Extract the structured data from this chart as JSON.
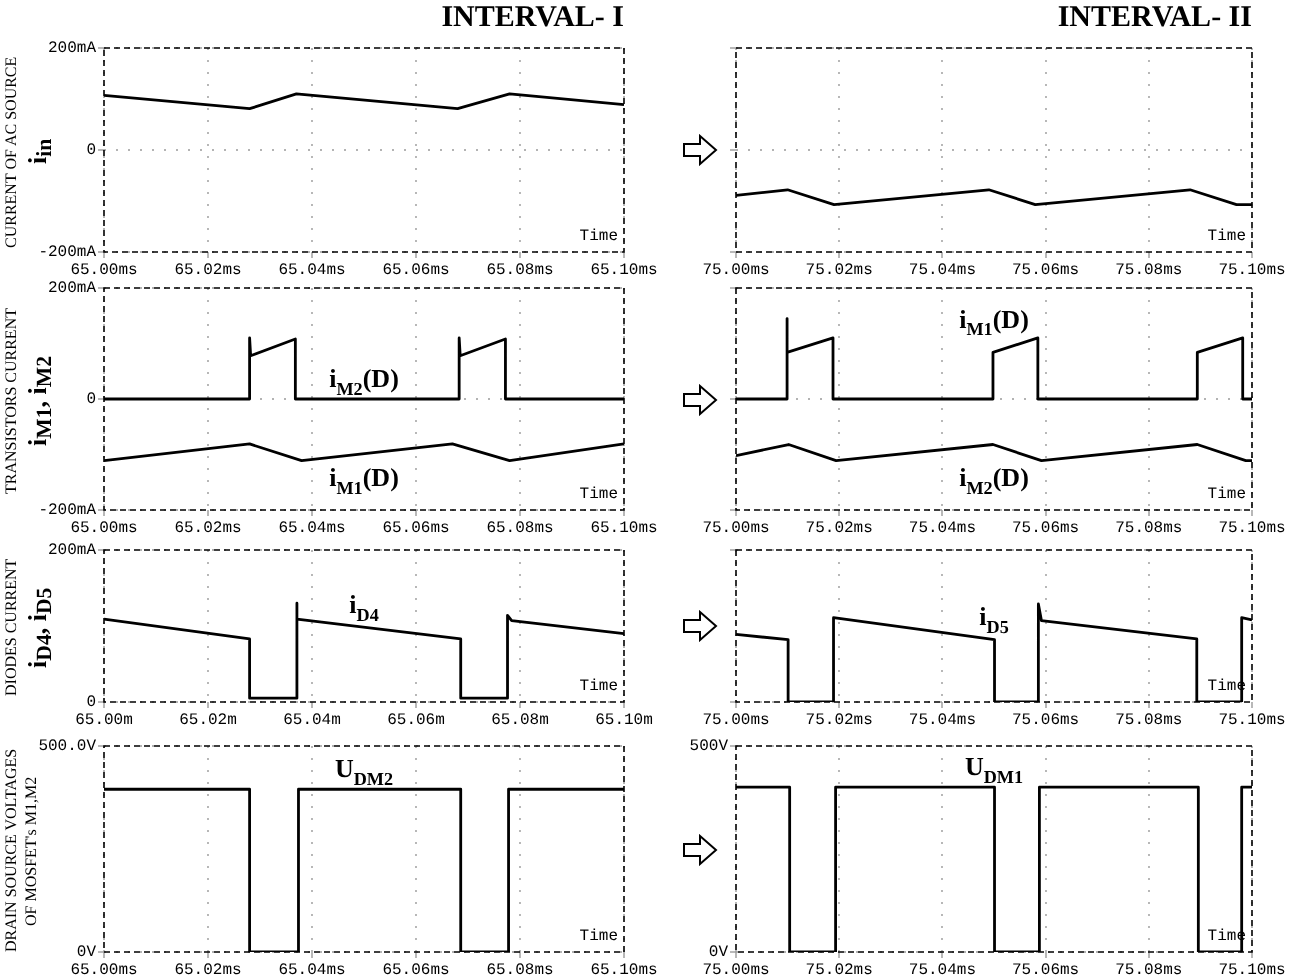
{
  "chart_data": [
    {
      "type": "line",
      "title": "INTERVAL- I",
      "ylabel": "CURRENT OF AC SOURCE\ni$_{in}$",
      "xlabel": "Time",
      "grid": true,
      "xlim": [
        65.0,
        65.1
      ],
      "ylim": [
        -200,
        200
      ],
      "xticks": [
        {
          "value": 65.0,
          "label": "65.00ms"
        },
        {
          "value": 65.02,
          "label": "65.02ms"
        },
        {
          "value": 65.04,
          "label": "65.04ms"
        },
        {
          "value": 65.06,
          "label": "65.06ms"
        },
        {
          "value": 65.08,
          "label": "65.08ms"
        },
        {
          "value": 65.1,
          "label": "65.10ms"
        }
      ],
      "yticks": [
        {
          "value": -200,
          "label": "-200mA"
        },
        {
          "value": 0,
          "label": "0"
        },
        {
          "value": 200,
          "label": "200mA"
        }
      ],
      "series": [
        {
          "color": "#000000",
          "x": [
            65.0,
            65.028,
            65.037,
            65.068,
            65.078,
            65.1
          ],
          "values": [
            107,
            81,
            110,
            81,
            110,
            89
          ]
        }
      ]
    },
    {
      "type": "line",
      "title": "INTERVAL- II",
      "xlabel": "Time",
      "grid": true,
      "tick_labels": "x",
      "xlim": [
        75.0,
        75.1
      ],
      "ylim": [
        -200,
        200
      ],
      "xticks": [
        {
          "value": 75.0,
          "label": "75.00ms"
        },
        {
          "value": 75.02,
          "label": "75.02ms"
        },
        {
          "value": 75.04,
          "label": "75.04ms"
        },
        {
          "value": 75.06,
          "label": "75.06ms"
        },
        {
          "value": 75.08,
          "label": "75.08ms"
        },
        {
          "value": 75.1,
          "label": "75.10ms"
        }
      ],
      "yticks": [
        {
          "value": -200,
          "label": null
        },
        {
          "value": 0,
          "label": null
        },
        {
          "value": 200,
          "label": null
        }
      ],
      "series": [
        {
          "color": "#000000",
          "x": [
            75.0,
            75.01,
            75.019,
            75.049,
            75.058,
            75.088,
            75.097,
            75.1
          ],
          "values": [
            -89,
            -78,
            -107,
            -78,
            -107,
            -78,
            -107,
            -107
          ]
        }
      ]
    },
    {
      "type": "line",
      "ylabel": "TRANSISTORS CURRENT\ni$_{M1}$, i$_{M2}$",
      "xlabel": "Time",
      "grid": true,
      "xlim": [
        65.0,
        65.1
      ],
      "ylim": [
        -200,
        200
      ],
      "xticks": [
        {
          "value": 65.0,
          "label": "65.00ms"
        },
        {
          "value": 65.02,
          "label": "65.02ms"
        },
        {
          "value": 65.04,
          "label": "65.04ms"
        },
        {
          "value": 65.06,
          "label": "65.06ms"
        },
        {
          "value": 65.08,
          "label": "65.08ms"
        },
        {
          "value": 65.1,
          "label": "65.10ms"
        }
      ],
      "yticks": [
        {
          "value": -200,
          "label": "-200mA"
        },
        {
          "value": 0,
          "label": "0"
        },
        {
          "value": 200,
          "label": "200mA"
        }
      ],
      "series": [
        {
          "name": "i$_{M2}$(D)",
          "color": "#000000",
          "x": [
            65.0,
            65.028,
            65.028,
            65.0282,
            65.0368,
            65.0368,
            65.0683,
            65.0683,
            65.0685,
            65.0772,
            65.0772,
            65.1
          ],
          "values": [
            0,
            0,
            110,
            78,
            108,
            0,
            0,
            110,
            78,
            108,
            0,
            0
          ]
        },
        {
          "name": "i$_{M1}$(D)",
          "color": "#000000",
          "x": [
            65.0,
            65.028,
            65.038,
            65.067,
            65.078,
            65.1
          ],
          "values": [
            -111,
            -81,
            -111,
            -81,
            -111,
            -81
          ]
        }
      ]
    },
    {
      "type": "line",
      "xlabel": "Time",
      "grid": true,
      "tick_labels": "x",
      "xlim": [
        75.0,
        75.1
      ],
      "ylim": [
        -200,
        200
      ],
      "xticks": [
        {
          "value": 75.0,
          "label": "75.00ms"
        },
        {
          "value": 75.02,
          "label": "75.02ms"
        },
        {
          "value": 75.04,
          "label": "75.04ms"
        },
        {
          "value": 75.06,
          "label": "75.06ms"
        },
        {
          "value": 75.08,
          "label": "75.08ms"
        },
        {
          "value": 75.1,
          "label": "75.10ms"
        }
      ],
      "yticks": [
        {
          "value": -200,
          "label": null
        },
        {
          "value": 0,
          "label": null
        },
        {
          "value": 200,
          "label": null
        }
      ],
      "series": [
        {
          "name": "i$_{M1}$(D)",
          "color": "#000000",
          "x": [
            75.0,
            75.0098,
            75.0098,
            75.01,
            75.0188,
            75.0188,
            75.0498,
            75.0498,
            75.0585,
            75.0585,
            75.0894,
            75.0894,
            75.0982,
            75.0982,
            75.1
          ],
          "values": [
            0,
            0,
            145,
            84,
            110,
            0,
            0,
            84,
            110,
            0,
            0,
            84,
            110,
            0,
            0
          ]
        },
        {
          "name": "i$_{M2}$(D)",
          "color": "#000000",
          "x": [
            75.0,
            75.0102,
            75.0194,
            75.0498,
            75.0592,
            75.0894,
            75.0988,
            75.1
          ],
          "values": [
            -102,
            -82,
            -111,
            -82,
            -111,
            -82,
            -111,
            -111
          ]
        }
      ]
    },
    {
      "type": "line",
      "ylabel": "DIODES CURRENT\ni$_{D4}$, i$_{D5}$",
      "xlabel": "Time",
      "grid": true,
      "xlim": [
        65.0,
        65.1
      ],
      "ylim": [
        0,
        200
      ],
      "xticks": [
        {
          "value": 65.0,
          "label": "65.00m"
        },
        {
          "value": 65.02,
          "label": "65.02m"
        },
        {
          "value": 65.04,
          "label": "65.04m"
        },
        {
          "value": 65.06,
          "label": "65.06m"
        },
        {
          "value": 65.08,
          "label": "65.08m"
        },
        {
          "value": 65.1,
          "label": "65.10m"
        }
      ],
      "yticks": [
        {
          "value": 0,
          "label": "0"
        },
        {
          "value": 200,
          "label": "200mA"
        }
      ],
      "series": [
        {
          "name": "i$_{D4}$",
          "color": "#000000",
          "x": [
            65.0,
            65.028,
            65.028,
            65.037,
            65.037,
            65.0372,
            65.0686,
            65.0686,
            65.0776,
            65.0776,
            65.0784,
            65.1
          ],
          "values": [
            109,
            83,
            5,
            5,
            130,
            109,
            83,
            5,
            5,
            114,
            107,
            90
          ]
        }
      ]
    },
    {
      "type": "line",
      "xlabel": "Time",
      "grid": true,
      "tick_labels": "x",
      "xlim": [
        75.0,
        75.1
      ],
      "ylim": [
        0,
        200
      ],
      "xticks": [
        {
          "value": 75.0,
          "label": "75.00ms"
        },
        {
          "value": 75.02,
          "label": "75.02ms"
        },
        {
          "value": 75.04,
          "label": "75.04ms"
        },
        {
          "value": 75.06,
          "label": "75.06ms"
        },
        {
          "value": 75.08,
          "label": "75.08ms"
        },
        {
          "value": 75.1,
          "label": "75.10ms"
        }
      ],
      "yticks": [
        {
          "value": 0,
          "label": null
        },
        {
          "value": 200,
          "label": null
        }
      ],
      "series": [
        {
          "name": "i$_{D5}$",
          "color": "#000000",
          "x": [
            75.0,
            75.0101,
            75.0101,
            75.0189,
            75.0189,
            75.0501,
            75.0501,
            75.0586,
            75.0586,
            75.0592,
            75.0893,
            75.0893,
            75.098,
            75.098,
            75.1
          ],
          "values": [
            89,
            82,
            0,
            0,
            111,
            82,
            0,
            0,
            129,
            107,
            83,
            0,
            0,
            111,
            108
          ]
        }
      ]
    },
    {
      "type": "line",
      "ylabel": "DRAIN SOURCE VOLTAGES\nOF MOSFET's M1,M2",
      "xlabel": "Time",
      "grid": true,
      "xlim": [
        65.0,
        65.1
      ],
      "ylim": [
        0,
        500
      ],
      "xticks": [
        {
          "value": 65.0,
          "label": "65.00ms"
        },
        {
          "value": 65.02,
          "label": "65.02ms"
        },
        {
          "value": 65.04,
          "label": "65.04ms"
        },
        {
          "value": 65.06,
          "label": "65.06ms"
        },
        {
          "value": 65.08,
          "label": "65.08ms"
        },
        {
          "value": 65.1,
          "label": "65.10ms"
        }
      ],
      "yticks": [
        {
          "value": 0,
          "label": "0V"
        },
        {
          "value": 500,
          "label": "500.0V"
        }
      ],
      "series": [
        {
          "name": "U$_{DM2}$",
          "color": "#000000",
          "x": [
            65.0,
            65.028,
            65.028,
            65.0374,
            65.0374,
            65.0686,
            65.0686,
            65.0778,
            65.0778,
            65.1
          ],
          "values": [
            395,
            395,
            0,
            0,
            395,
            395,
            0,
            0,
            395,
            395
          ]
        }
      ]
    },
    {
      "type": "line",
      "xlabel": "Time",
      "grid": true,
      "xlim": [
        75.0,
        75.1
      ],
      "ylim": [
        0,
        500
      ],
      "xticks": [
        {
          "value": 75.0,
          "label": "75.00ms"
        },
        {
          "value": 75.02,
          "label": "75.02ms"
        },
        {
          "value": 75.04,
          "label": "75.04ms"
        },
        {
          "value": 75.06,
          "label": "75.06ms"
        },
        {
          "value": 75.08,
          "label": "75.08ms"
        },
        {
          "value": 75.1,
          "label": "75.10ms"
        }
      ],
      "yticks": [
        {
          "value": 0,
          "label": "0V"
        },
        {
          "value": 500,
          "label": "500V"
        }
      ],
      "series": [
        {
          "name": "U$_{DM1}$",
          "color": "#000000",
          "x": [
            75.0,
            75.0104,
            75.0104,
            75.0193,
            75.0193,
            75.0501,
            75.0501,
            75.0588,
            75.0588,
            75.0896,
            75.0896,
            75.098,
            75.098,
            75.1
          ],
          "values": [
            400,
            400,
            0,
            0,
            400,
            400,
            0,
            0,
            400,
            400,
            0,
            0,
            400,
            400
          ]
        }
      ]
    }
  ]
}
